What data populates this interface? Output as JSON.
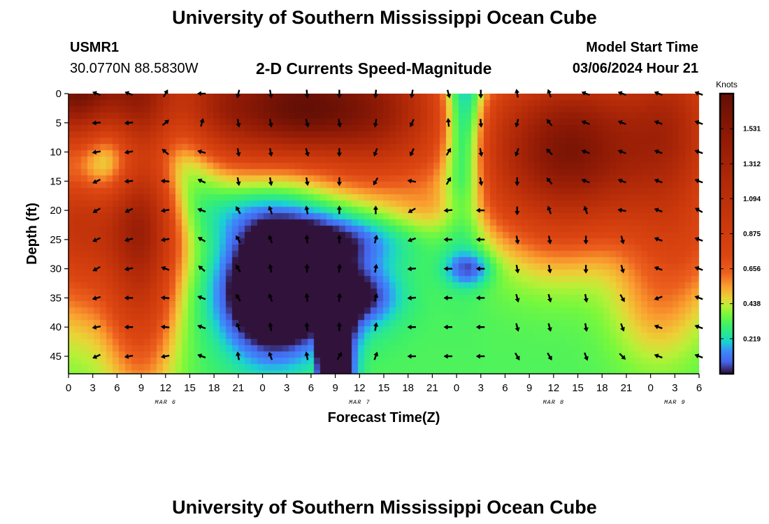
{
  "page": {
    "title": "University of Southern Mississippi Ocean Cube",
    "footer_title": "University of Southern Mississippi Ocean Cube",
    "station": "USMR1",
    "coords": "30.0770N  88.5830W",
    "subtitle": "2-D Currents Speed-Magnitude",
    "model_start_label": "Model Start Time",
    "model_start_value": "03/06/2024 Hour 21"
  },
  "chart_data": {
    "type": "heatmap",
    "title": "2-D Currents Speed-Magnitude",
    "xlabel": "Forecast Time(Z)",
    "ylabel": "Depth (ft)",
    "x_ticks": [
      "0",
      "3",
      "6",
      "9",
      "12",
      "15",
      "18",
      "21",
      "0",
      "3",
      "6",
      "9",
      "12",
      "15",
      "18",
      "21",
      "0",
      "3",
      "6",
      "9",
      "12",
      "15",
      "18",
      "21",
      "0",
      "3",
      "6"
    ],
    "x_hours": [
      0,
      3,
      6,
      9,
      12,
      15,
      18,
      21,
      24,
      27,
      30,
      33,
      36,
      39,
      42,
      45,
      48,
      51,
      54,
      57,
      60,
      63,
      66,
      69,
      72,
      75,
      78
    ],
    "xlim": [
      0,
      78
    ],
    "date_labels": [
      {
        "label": "MAR 6",
        "hour": 12
      },
      {
        "label": "MAR 7",
        "hour": 36
      },
      {
        "label": "MAR 8",
        "hour": 60
      },
      {
        "label": "MAR 9",
        "hour": 75
      }
    ],
    "y_ticks": [
      0,
      5,
      10,
      15,
      20,
      25,
      30,
      35,
      40,
      45
    ],
    "ylim": [
      0,
      48
    ],
    "colorbar": {
      "label": "Knots",
      "ticks": [
        "1.531",
        "1.312",
        "1.094",
        "0.875",
        "0.656",
        "0.438",
        "0.219"
      ],
      "tick_values": [
        1.531,
        1.312,
        1.094,
        0.875,
        0.656,
        0.438,
        0.219
      ],
      "range": [
        0,
        1.75
      ]
    },
    "vector_x_hours": [
      3.5,
      7.5,
      12,
      16.5,
      21,
      25,
      29.5,
      33.5,
      38,
      42.5,
      47,
      51,
      55.5,
      59.5,
      64,
      68.5,
      73,
      78
    ],
    "vector_depths": [
      0,
      5,
      10,
      15,
      20,
      25,
      30,
      35,
      40,
      45
    ],
    "vector_angles_deg": [
      [
        200,
        200,
        300,
        180,
        105,
        80,
        85,
        90,
        95,
        100,
        75,
        90,
        260,
        250,
        200,
        200,
        200,
        200
      ],
      [
        175,
        175,
        320,
        285,
        80,
        80,
        75,
        80,
        100,
        115,
        265,
        85,
        105,
        230,
        200,
        200,
        200,
        200
      ],
      [
        170,
        170,
        220,
        195,
        80,
        80,
        75,
        90,
        110,
        115,
        300,
        80,
        110,
        225,
        200,
        200,
        200,
        200
      ],
      [
        155,
        175,
        185,
        205,
        80,
        80,
        80,
        90,
        120,
        190,
        300,
        80,
        90,
        230,
        200,
        200,
        200,
        200
      ],
      [
        150,
        155,
        170,
        200,
        240,
        250,
        260,
        270,
        270,
        150,
        175,
        180,
        90,
        250,
        250,
        190,
        200,
        210
      ],
      [
        155,
        165,
        170,
        210,
        240,
        250,
        265,
        270,
        285,
        160,
        180,
        180,
        80,
        80,
        90,
        75,
        200,
        200
      ],
      [
        150,
        170,
        200,
        220,
        240,
        260,
        270,
        275,
        280,
        175,
        180,
        180,
        80,
        80,
        90,
        75,
        200,
        200
      ],
      [
        165,
        180,
        185,
        200,
        240,
        250,
        265,
        275,
        285,
        175,
        180,
        180,
        75,
        75,
        80,
        60,
        160,
        200
      ],
      [
        170,
        180,
        185,
        200,
        250,
        260,
        265,
        270,
        280,
        180,
        180,
        180,
        75,
        75,
        80,
        70,
        200,
        200
      ],
      [
        155,
        170,
        170,
        200,
        260,
        250,
        260,
        300,
        290,
        180,
        180,
        180,
        60,
        60,
        70,
        45,
        200,
        200
      ]
    ]
  }
}
